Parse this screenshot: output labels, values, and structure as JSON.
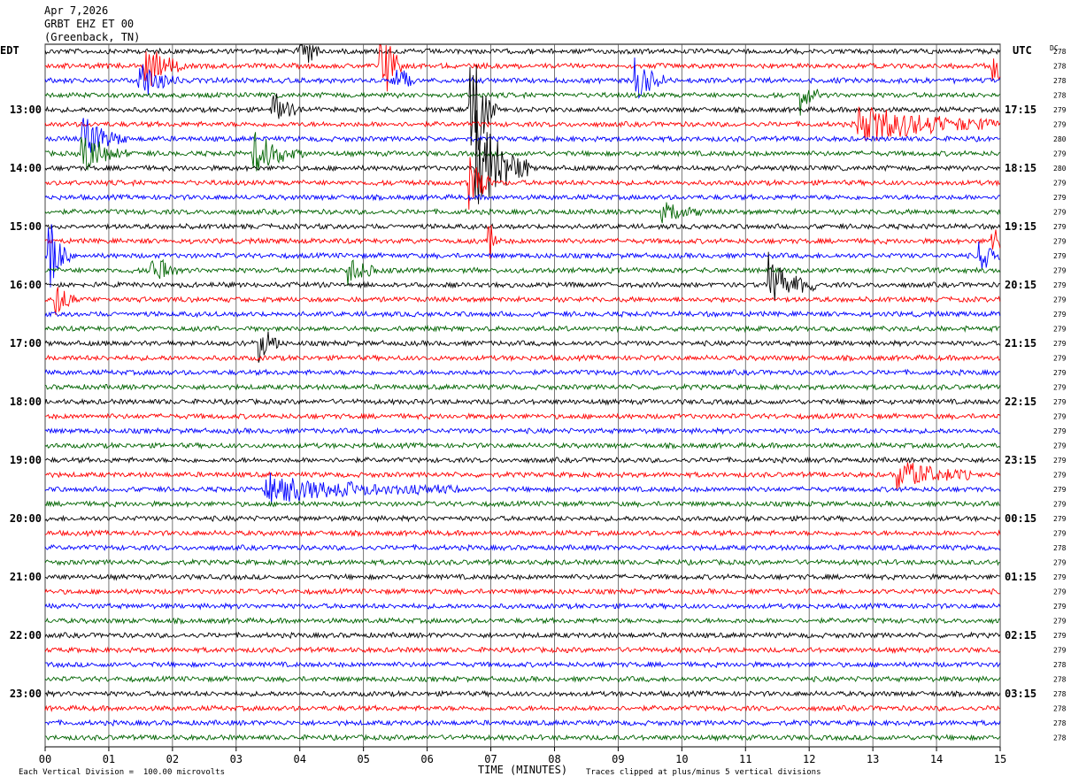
{
  "header": {
    "date": "Apr 7,2026",
    "station": "GRBT EHZ ET 00",
    "location": "(Greenback, TN)"
  },
  "left_zone": "EDT",
  "right_zone": "UTC",
  "dc_label": "DC",
  "footer": {
    "scale_note": "Each Vertical Division =  100.00 microvolts",
    "clip_note": "Traces clipped at plus/minus 5 vertical divisions"
  },
  "chart_data": {
    "type": "line",
    "subtype": "helicorder",
    "xlabel": "TIME (MINUTES)",
    "xlim": [
      0,
      15
    ],
    "x_ticks": [
      "00",
      "01",
      "02",
      "03",
      "04",
      "05",
      "06",
      "07",
      "08",
      "09",
      "10",
      "11",
      "12",
      "13",
      "14",
      "15"
    ],
    "trace_colors": [
      "#000000",
      "#ff0000",
      "#0000ff",
      "#006400"
    ],
    "rows": 48,
    "left_hour_labels": [
      {
        "row": 4,
        "label": "13:00"
      },
      {
        "row": 8,
        "label": "14:00"
      },
      {
        "row": 12,
        "label": "15:00"
      },
      {
        "row": 16,
        "label": "16:00"
      },
      {
        "row": 20,
        "label": "17:00"
      },
      {
        "row": 24,
        "label": "18:00"
      },
      {
        "row": 28,
        "label": "19:00"
      },
      {
        "row": 32,
        "label": "20:00"
      },
      {
        "row": 36,
        "label": "21:00"
      },
      {
        "row": 40,
        "label": "22:00"
      },
      {
        "row": 44,
        "label": "23:00"
      }
    ],
    "right_hour_labels": [
      {
        "row": 4,
        "label": "17:15"
      },
      {
        "row": 8,
        "label": "18:15"
      },
      {
        "row": 12,
        "label": "19:15"
      },
      {
        "row": 16,
        "label": "20:15"
      },
      {
        "row": 20,
        "label": "21:15"
      },
      {
        "row": 24,
        "label": "22:15"
      },
      {
        "row": 28,
        "label": "23:15"
      },
      {
        "row": 32,
        "label": "00:15"
      },
      {
        "row": 36,
        "label": "01:15"
      },
      {
        "row": 40,
        "label": "02:15"
      },
      {
        "row": 44,
        "label": "03:15"
      }
    ],
    "dc_values": [
      "278",
      "278",
      "278",
      "278",
      "279",
      "279",
      "280",
      "279",
      "280",
      "279",
      "279",
      "279",
      "279",
      "279",
      "279",
      "279",
      "279",
      "279",
      "279",
      "279",
      "279",
      "279",
      "279",
      "279",
      "279",
      "279",
      "279",
      "279",
      "279",
      "279",
      "279",
      "279",
      "279",
      "279",
      "278",
      "279",
      "279",
      "279",
      "279",
      "279",
      "279",
      "279",
      "278",
      "278",
      "278",
      "278",
      "278",
      "278"
    ],
    "events": [
      {
        "row": 0,
        "minute": 4.0,
        "amplitude": 3,
        "duration": 0.3
      },
      {
        "row": 1,
        "minute": 1.6,
        "amplitude": 2,
        "duration": 0.6
      },
      {
        "row": 1,
        "minute": 5.3,
        "amplitude": 4,
        "duration": 0.3
      },
      {
        "row": 1,
        "minute": 14.9,
        "amplitude": 2.5,
        "duration": 0.3
      },
      {
        "row": 2,
        "minute": 1.5,
        "amplitude": 1.8,
        "duration": 0.6
      },
      {
        "row": 2,
        "minute": 5.5,
        "amplitude": 2,
        "duration": 0.3
      },
      {
        "row": 2,
        "minute": 9.3,
        "amplitude": 1.8,
        "duration": 0.5
      },
      {
        "row": 3,
        "minute": 11.9,
        "amplitude": 1.5,
        "duration": 0.3
      },
      {
        "row": 4,
        "minute": 3.6,
        "amplitude": 1.5,
        "duration": 0.4
      },
      {
        "row": 4,
        "minute": 6.7,
        "amplitude": 6,
        "duration": 0.4
      },
      {
        "row": 5,
        "minute": 12.8,
        "amplitude": 1.8,
        "duration": 2.4
      },
      {
        "row": 6,
        "minute": 0.6,
        "amplitude": 2,
        "duration": 0.7
      },
      {
        "row": 7,
        "minute": 0.6,
        "amplitude": 1.8,
        "duration": 0.7
      },
      {
        "row": 7,
        "minute": 3.3,
        "amplitude": 1.8,
        "duration": 0.8
      },
      {
        "row": 8,
        "minute": 6.8,
        "amplitude": 5,
        "duration": 0.8
      },
      {
        "row": 9,
        "minute": 6.7,
        "amplitude": 3,
        "duration": 0.3
      },
      {
        "row": 11,
        "minute": 9.7,
        "amplitude": 1.5,
        "duration": 0.6
      },
      {
        "row": 13,
        "minute": 7.0,
        "amplitude": 1.8,
        "duration": 0.2
      },
      {
        "row": 13,
        "minute": 14.9,
        "amplitude": 1.5,
        "duration": 0.2
      },
      {
        "row": 14,
        "minute": 0.1,
        "amplitude": 3,
        "duration": 0.3
      },
      {
        "row": 14,
        "minute": 14.7,
        "amplitude": 1.5,
        "duration": 0.3
      },
      {
        "row": 15,
        "minute": 1.7,
        "amplitude": 1.5,
        "duration": 0.4
      },
      {
        "row": 15,
        "minute": 4.8,
        "amplitude": 1.5,
        "duration": 0.4
      },
      {
        "row": 16,
        "minute": 11.4,
        "amplitude": 2.5,
        "duration": 0.7
      },
      {
        "row": 17,
        "minute": 0.2,
        "amplitude": 1.5,
        "duration": 0.3
      },
      {
        "row": 20,
        "minute": 3.4,
        "amplitude": 1.8,
        "duration": 0.3
      },
      {
        "row": 29,
        "minute": 13.4,
        "amplitude": 1.5,
        "duration": 1.2
      },
      {
        "row": 30,
        "minute": 3.5,
        "amplitude": 1.2,
        "duration": 3.0
      }
    ]
  }
}
